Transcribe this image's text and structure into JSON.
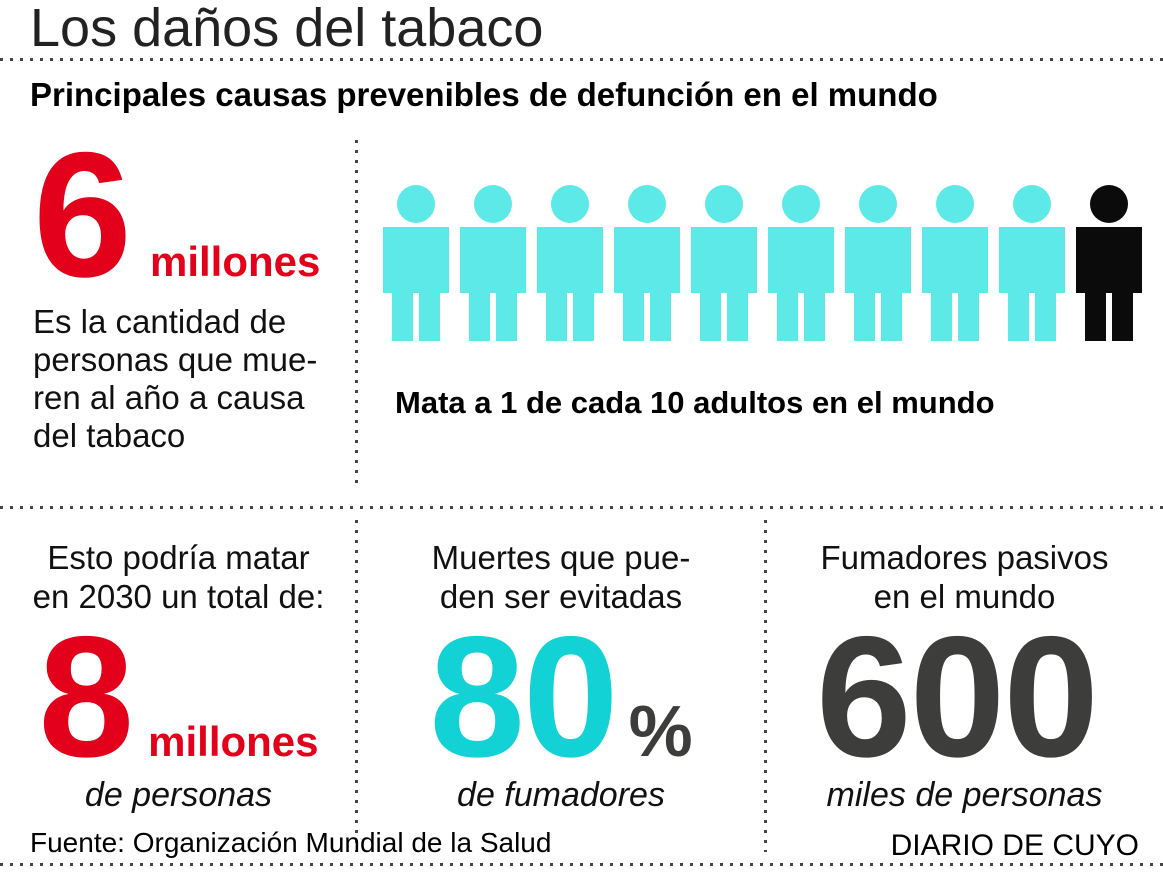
{
  "header": {
    "title": "Los daños del tabaco",
    "subtitle": "Principales causas prevenibles de defunción en el mundo"
  },
  "top_section": {
    "stat": {
      "value": "6",
      "unit": "millones"
    },
    "description_lines": [
      "Es la cantidad de",
      "personas que mue-",
      "ren al año a causa",
      "del tabaco"
    ],
    "pictogram": {
      "total": 10,
      "highlighted": 1,
      "caption": "Mata a 1 de cada 10 adultos en el mundo"
    }
  },
  "panels": [
    {
      "heading_lines": [
        "Esto podría matar",
        "en 2030 un total de:"
      ],
      "value": "8",
      "unit": "millones",
      "subtext": "de personas"
    },
    {
      "heading_lines": [
        "Muertes que pue-",
        "den ser evitadas"
      ],
      "value": "80",
      "unit": "%",
      "subtext": "de fumadores"
    },
    {
      "heading_lines": [
        "Fumadores pasivos",
        "en el mundo"
      ],
      "value": "600",
      "unit": "",
      "subtext": "miles de personas"
    }
  ],
  "footer": {
    "source": "Fuente: Organización Mundial de la Salud",
    "credit": "DIARIO DE CUYO"
  },
  "colors": {
    "red": "#e2001a",
    "figure_cyan": "#5ee9e9",
    "accent_cyan": "#12d2d6",
    "dark_gray": "#3d3d3c",
    "figure_black": "#0b0b0b"
  },
  "chart_data": {
    "type": "pictogram",
    "title": "Los daños del tabaco",
    "subtitle": "Principales causas prevenibles de defunción en el mundo",
    "unit_chart": {
      "total_units": 10,
      "highlighted_units": 1,
      "highlight_position": "last",
      "caption": "Mata a 1 de cada 10 adultos en el mundo"
    },
    "statistics": [
      {
        "value": 6,
        "unit": "millones",
        "label": "Es la cantidad de personas que mueren al año a causa del tabaco"
      },
      {
        "value": 8,
        "unit": "millones de personas",
        "label": "Esto podría matar en 2030 un total de"
      },
      {
        "value": 80,
        "unit": "% de fumadores",
        "label": "Muertes que pueden ser evitadas"
      },
      {
        "value": 600,
        "unit": "miles de personas",
        "label": "Fumadores pasivos en el mundo"
      }
    ],
    "legend_position": "none",
    "grid": false,
    "source": "Fuente: Organización Mundial de la Salud",
    "credit": "DIARIO DE CUYO"
  }
}
